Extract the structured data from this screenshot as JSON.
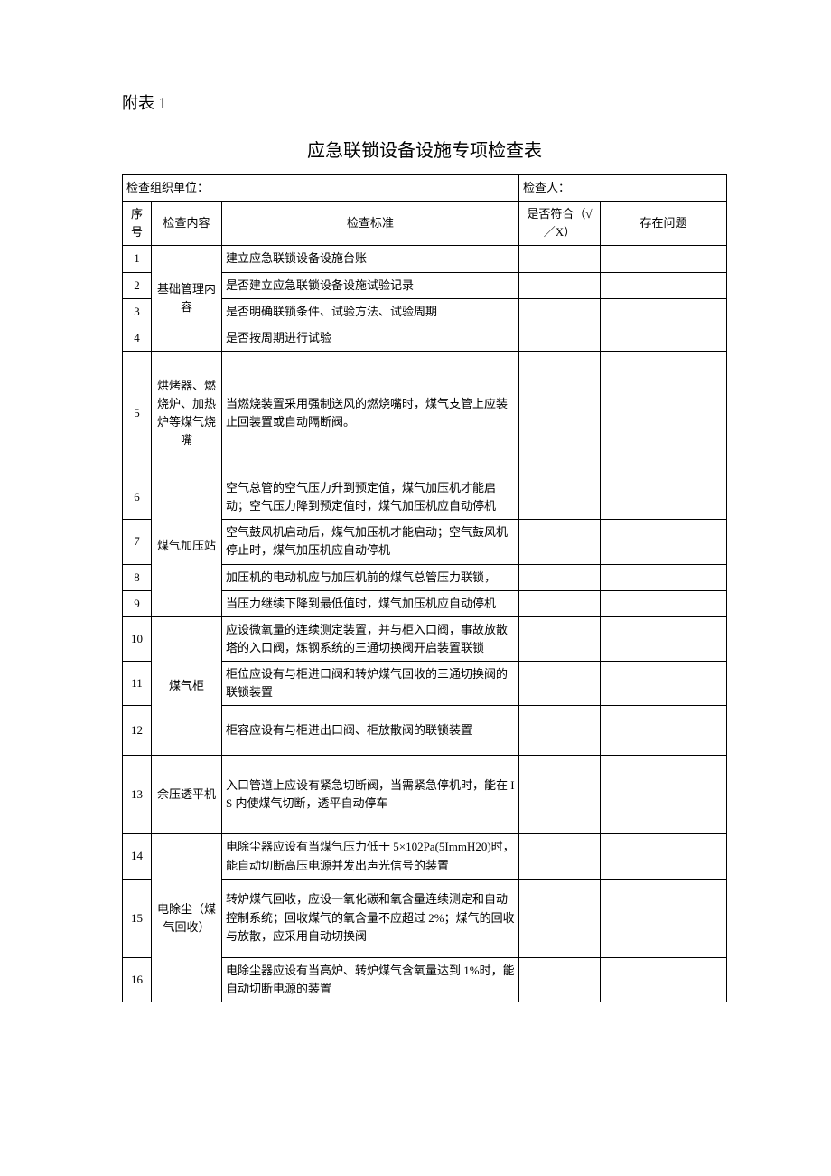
{
  "appendix_label": "附表 1",
  "title": "应急联锁设备设施专项检查表",
  "header_row": {
    "org_label": "检查组织单位：",
    "inspector_label": "检查人：",
    "org_value": "",
    "inspector_value": ""
  },
  "columns": {
    "seq": "序号",
    "content": "检查内容",
    "standard": "检查标准",
    "compliant": "是否符合（√／X）",
    "issue": "存在问题"
  },
  "groups": [
    {
      "content": "基础管理内容",
      "rows": [
        {
          "seq": "1",
          "standard": "建立应急联锁设备设施台账"
        },
        {
          "seq": "2",
          "standard": "是否建立应急联锁设备设施试验记录"
        },
        {
          "seq": "3",
          "standard": "是否明确联锁条件、试验方法、试验周期"
        },
        {
          "seq": "4",
          "standard": "是否按周期进行试验"
        }
      ]
    },
    {
      "content": "烘烤器、燃烧炉、加热炉等煤气烧嘴",
      "rows": [
        {
          "seq": "5",
          "standard": "当燃烧装置采用强制送风的燃烧嘴时，煤气支管上应装止回装置或自动隔断阀。",
          "tall": true
        }
      ]
    },
    {
      "content": "煤气加压站",
      "rows": [
        {
          "seq": "6",
          "standard": "空气总管的空气压力升到预定值，煤气加压机才能启动；空气压力降到预定值时，煤气加压机应自动停机"
        },
        {
          "seq": "7",
          "standard": "空气鼓风机启动后，煤气加压机才能启动；空气鼓风机停止时，煤气加压机应自动停机"
        },
        {
          "seq": "8",
          "standard": "加压机的电动机应与加压机前的煤气总管压力联锁，"
        },
        {
          "seq": "9",
          "standard": "当压力继续下降到最低值时，煤气加压机应自动停机"
        }
      ]
    },
    {
      "content": "煤气柜",
      "rows": [
        {
          "seq": "10",
          "standard": "应设微氧量的连续测定装置，并与柜入口阀，事故放散塔的入口阀，炼钢系统的三通切换阀开启装置联锁"
        },
        {
          "seq": "11",
          "standard": "柜位应设有与柜进口阀和转炉煤气回收的三通切换阀的联锁装置"
        },
        {
          "seq": "12",
          "standard": "柜容应设有与柜进出口阀、柜放散阀的联锁装置",
          "med": true
        }
      ]
    },
    {
      "content": "余压透平机",
      "rows": [
        {
          "seq": "13",
          "standard": "入口管道上应设有紧急切断阀，当需紧急停机时，能在 IS 内使煤气切断，透平自动停车",
          "med2": true
        }
      ]
    },
    {
      "content": "电除尘（煤气回收）",
      "rows": [
        {
          "seq": "14",
          "standard": "电除尘器应设有当煤气压力低于 5×102Pa(5ImmH20)时，能自动切断高压电源并发出声光信号的装置"
        },
        {
          "seq": "15",
          "standard": "转炉煤气回收，应设一氧化碳和氧含量连续测定和自动控制系统；回收煤气的氧含量不应超过 2%；煤气的回收与放散，应采用自动切换阀",
          "med2": true
        },
        {
          "seq": "16",
          "standard": "电除尘器应设有当高炉、转炉煤气含氧量达到 1%时，能自动切断电源的装置"
        }
      ]
    }
  ]
}
